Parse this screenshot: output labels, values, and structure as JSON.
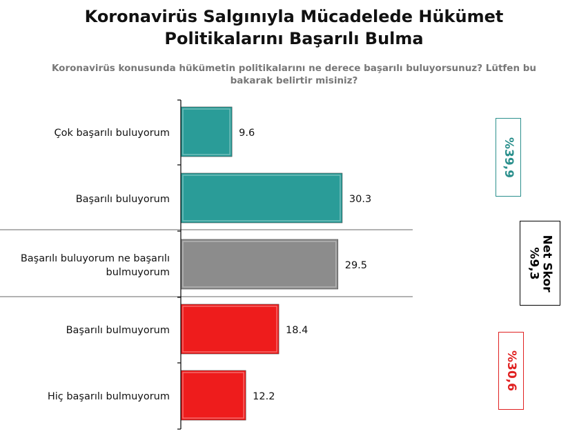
{
  "title_line1": "Koronavirüs Salgınıyla Mücadelede Hükümet",
  "title_line2": "Politikalarını Başarılı Bulma",
  "subtitle_line1": "Koronavirüs konusunda hükümetin politikalarını ne derece başarılı buluyorsunuz? Lütfen bu",
  "subtitle_line2": "bakarak belirtir misiniz?",
  "chart_data": {
    "type": "bar",
    "orientation": "horizontal",
    "categories": [
      "Çok başarılı buluyorum",
      "Başarılı buluyorum",
      "Başarılı buluyorum ne başarılı bulmuyorum",
      "Başarılı bulmuyorum",
      "Hiç başarılı bulmuyorum"
    ],
    "category_lines": [
      [
        "Çok başarılı buluyorum"
      ],
      [
        "Başarılı buluyorum"
      ],
      [
        "Başarılı buluyorum ne başarılı",
        "bulmuyorum"
      ],
      [
        "Başarılı bulmuyorum"
      ],
      [
        "Hiç başarılı bulmuyorum"
      ]
    ],
    "values": [
      9.6,
      30.3,
      29.5,
      18.4,
      12.2
    ],
    "value_labels": [
      "9.6",
      "30.3",
      "29.5",
      "18.4",
      "12.2"
    ],
    "colors": [
      "#2a9c98",
      "#2a9c98",
      "#8c8c8c",
      "#ee1c1c",
      "#ee1c1c"
    ],
    "xlim": [
      0,
      40
    ],
    "grid": false,
    "legend": "none"
  },
  "summary": {
    "positive": {
      "text": "%39,9",
      "color": "#2a8f8c"
    },
    "net_line1": "Net Skor",
    "net_line2": "%9,3",
    "negative": {
      "text": "%30,6",
      "color": "#e02020"
    }
  }
}
